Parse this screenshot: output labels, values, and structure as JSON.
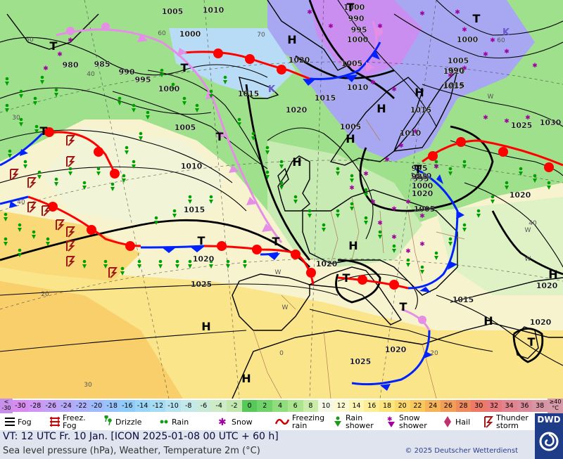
{
  "colors": {
    "warm_front": "#ff0000",
    "cold_front": "#0022ff",
    "occlusion": "#e58ee6",
    "isobar": "#000000",
    "precip_green": "#00a000",
    "snow_purple": "#a000a0",
    "footer_bg": "#dfe4ee",
    "dwd_blue": "#1f3c88"
  },
  "pressure_labels": [
    {
      "text": "1005"
    },
    {
      "text": "1010"
    },
    {
      "text": "1000"
    },
    {
      "text": "1000"
    },
    {
      "text": "1015"
    },
    {
      "text": "990"
    },
    {
      "text": "995"
    },
    {
      "text": "1000"
    },
    {
      "text": "1020"
    },
    {
      "text": "1005"
    },
    {
      "text": "1010"
    },
    {
      "text": "1015"
    },
    {
      "text": "1020"
    },
    {
      "text": "1005"
    },
    {
      "text": "1015"
    },
    {
      "text": "1020"
    },
    {
      "text": "1005"
    },
    {
      "text": "1010"
    },
    {
      "text": "1015"
    },
    {
      "text": "980"
    },
    {
      "text": "985"
    },
    {
      "text": "990"
    },
    {
      "text": "995"
    },
    {
      "text": "1000"
    },
    {
      "text": "1005"
    },
    {
      "text": "1010"
    },
    {
      "text": "1015"
    },
    {
      "text": "1020"
    },
    {
      "text": "1025"
    },
    {
      "text": "1020"
    },
    {
      "text": "1025"
    },
    {
      "text": "1030"
    },
    {
      "text": "1010"
    },
    {
      "text": "1020"
    },
    {
      "text": "995"
    },
    {
      "text": "1000"
    },
    {
      "text": "1005"
    },
    {
      "text": "1015"
    },
    {
      "text": "1015"
    },
    {
      "text": "1020"
    },
    {
      "text": "1025"
    },
    {
      "text": "1010"
    },
    {
      "text": "1020"
    },
    {
      "text": "1020"
    },
    {
      "text": "985"
    },
    {
      "text": "990"
    },
    {
      "text": "995"
    },
    {
      "text": "1000"
    }
  ],
  "pressure_centers": [
    {
      "text": "H"
    },
    {
      "text": "H"
    },
    {
      "text": "H"
    },
    {
      "text": "H"
    },
    {
      "text": "H"
    },
    {
      "text": "H"
    },
    {
      "text": "H"
    },
    {
      "text": "H"
    },
    {
      "text": "H"
    },
    {
      "text": "H"
    },
    {
      "text": "T"
    },
    {
      "text": "T"
    },
    {
      "text": "T"
    },
    {
      "text": "T"
    },
    {
      "text": "T"
    },
    {
      "text": "T"
    },
    {
      "text": "T"
    },
    {
      "text": "T"
    },
    {
      "text": "T"
    },
    {
      "text": "T"
    },
    {
      "text": "T"
    },
    {
      "text": "T"
    },
    {
      "text": "K"
    },
    {
      "text": "K"
    }
  ],
  "temp_labels_on_map": [
    "60",
    "50",
    "40",
    "30",
    "20",
    "40",
    "60",
    "70",
    "0",
    "20",
    "40",
    "30",
    "W",
    "W",
    "W",
    "W",
    "W"
  ],
  "colorbar": {
    "low_end": {
      "line1": "<",
      "line2": "-30"
    },
    "high_end": {
      "line1": "≥40",
      "line2": "°C"
    },
    "cells": [
      {
        "label": "-30",
        "color": "#d98cf0"
      },
      {
        "label": "-28",
        "color": "#cf97f3"
      },
      {
        "label": "-26",
        "color": "#c3a0f6"
      },
      {
        "label": "-24",
        "color": "#b7a8f8"
      },
      {
        "label": "-22",
        "color": "#abb2fa"
      },
      {
        "label": "-20",
        "color": "#a0bbfb"
      },
      {
        "label": "-18",
        "color": "#98c4fb"
      },
      {
        "label": "-16",
        "color": "#90ccfa"
      },
      {
        "label": "-14",
        "color": "#9ad5f7"
      },
      {
        "label": "-12",
        "color": "#a6dcf3"
      },
      {
        "label": "-10",
        "color": "#b6e3ef"
      },
      {
        "label": "-8",
        "color": "#c4e9ea"
      },
      {
        "label": "-6",
        "color": "#c9ead6"
      },
      {
        "label": "-4",
        "color": "#cdebc4"
      },
      {
        "label": "-2",
        "color": "#c2e8b0"
      },
      {
        "label": "0",
        "color": "#56c95a"
      },
      {
        "label": "2",
        "color": "#6fd36a"
      },
      {
        "label": "4",
        "color": "#8fdd7c"
      },
      {
        "label": "6",
        "color": "#ace590"
      },
      {
        "label": "8",
        "color": "#c9eca8"
      },
      {
        "label": "10",
        "color": "#f5f8e6"
      },
      {
        "label": "12",
        "color": "#fbf8d2"
      },
      {
        "label": "14",
        "color": "#fcf4b2"
      },
      {
        "label": "16",
        "color": "#fdee96"
      },
      {
        "label": "18",
        "color": "#fce57c"
      },
      {
        "label": "20",
        "color": "#fbd86a"
      },
      {
        "label": "22",
        "color": "#f8c85d"
      },
      {
        "label": "24",
        "color": "#f4b457"
      },
      {
        "label": "26",
        "color": "#f29e57"
      },
      {
        "label": "28",
        "color": "#ef8a5c"
      },
      {
        "label": "30",
        "color": "#ec7a66"
      },
      {
        "label": "32",
        "color": "#e67a7e"
      },
      {
        "label": "34",
        "color": "#e1848e"
      },
      {
        "label": "36",
        "color": "#db8c9b"
      },
      {
        "label": "38",
        "color": "#d895a3"
      }
    ]
  },
  "legend": [
    {
      "label": "Fog",
      "icon": "fog-icon"
    },
    {
      "label": "Freez. Fog",
      "icon": "freezing-fog-icon"
    },
    {
      "label": "Drizzle",
      "icon": "drizzle-icon"
    },
    {
      "label": "Rain",
      "icon": "rain-icon"
    },
    {
      "label": "Snow",
      "icon": "snow-icon"
    },
    {
      "label": "Freezing rain",
      "icon": "freezing-rain-icon"
    },
    {
      "label": "Rain shower",
      "icon": "rain-shower-icon"
    },
    {
      "label": "Snow shower",
      "icon": "snow-shower-icon"
    },
    {
      "label": "Hail",
      "icon": "hail-icon"
    },
    {
      "label": "Thunder storm",
      "icon": "thunderstorm-icon"
    }
  ],
  "footer": {
    "valid_time": "VT: 12 UTC Fr.  10 Jan. [ICON 2025-01-08  00 UTC + 60 h]",
    "description": "Sea level pressure (hPa), Weather, Temperature 2m (°C)",
    "copyright": "© 2025 Deutscher Wetterdienst",
    "logo_text": "DWD"
  }
}
